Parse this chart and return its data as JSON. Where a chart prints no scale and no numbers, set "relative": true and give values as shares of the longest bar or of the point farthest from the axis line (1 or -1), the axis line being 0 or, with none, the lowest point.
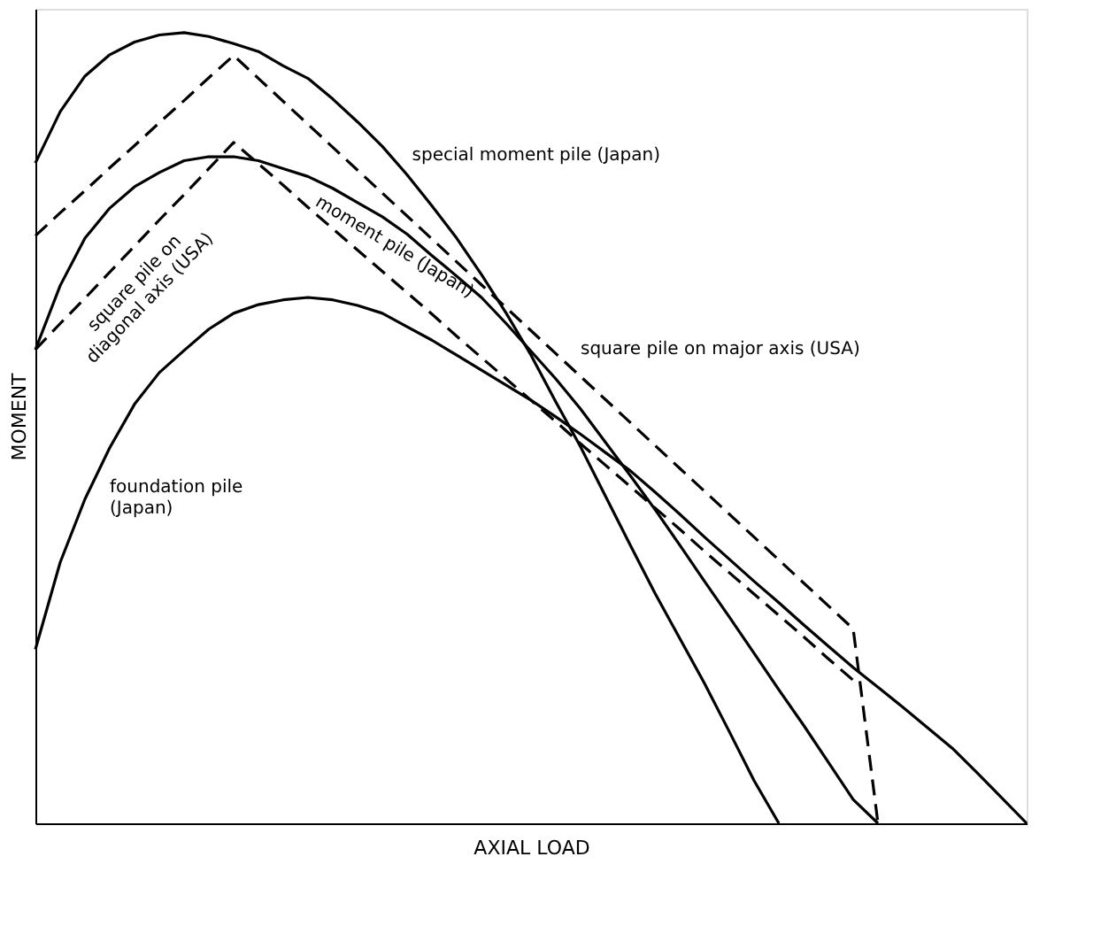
{
  "chart_data": {
    "type": "line",
    "xlabel": "AXIAL LOAD",
    "ylabel": "MOMENT",
    "relative": true,
    "tick_labels": false,
    "categories": [
      null,
      null,
      null,
      null,
      null,
      null,
      null,
      null,
      null,
      null,
      null,
      null,
      null,
      null,
      null,
      null,
      null,
      null,
      null,
      null,
      null,
      null,
      null,
      null,
      null,
      null,
      null,
      null,
      null,
      null,
      null,
      null,
      null,
      null,
      null,
      null,
      null,
      null,
      null,
      null,
      null
    ],
    "series": [
      {
        "name": "special moment pile (Japan)",
        "color": "#000000",
        "line_style": "solid",
        "values": [
          0.835,
          0.9,
          0.945,
          0.972,
          0.988,
          0.997,
          1.0,
          0.995,
          0.986,
          0.976,
          0.958,
          0.942,
          0.916,
          0.887,
          0.856,
          0.82,
          0.781,
          0.74,
          0.694,
          0.645,
          0.592,
          0.533,
          0.476,
          0.414,
          0.352,
          0.291,
          0.234,
          0.177,
          0.116,
          0.054,
          0,
          null,
          null,
          null,
          null,
          null,
          null,
          null,
          null,
          null,
          null
        ]
      },
      {
        "name": "square pile on major axis (USA)",
        "color": "#000000",
        "line_style": "dashed",
        "values": [
          0.743,
          0.772,
          0.8,
          0.829,
          0.857,
          0.886,
          0.914,
          0.943,
          0.971,
          0.942,
          0.913,
          0.884,
          0.855,
          0.826,
          0.797,
          0.768,
          0.739,
          0.71,
          0.681,
          0.652,
          0.623,
          0.594,
          0.565,
          0.536,
          0.507,
          0.478,
          0.449,
          0.42,
          0.391,
          0.362,
          0.333,
          0.304,
          0.275,
          0.246,
          0,
          null,
          null,
          null,
          null,
          null,
          null
        ]
      },
      {
        "name": "moment pile (Japan)",
        "color": "#000000",
        "line_style": "solid",
        "values": [
          0.599,
          0.68,
          0.74,
          0.778,
          0.805,
          0.823,
          0.838,
          0.843,
          0.843,
          0.838,
          0.828,
          0.818,
          0.803,
          0.785,
          0.767,
          0.745,
          0.718,
          0.692,
          0.665,
          0.632,
          0.597,
          0.562,
          0.524,
          0.482,
          0.44,
          0.397,
          0.352,
          0.306,
          0.261,
          0.215,
          0.169,
          0.124,
          0.077,
          0.03,
          0,
          null,
          null,
          null,
          null,
          null,
          null
        ]
      },
      {
        "name": "square pile on diagonal axis (USA)",
        "color": "#000000",
        "line_style": "dashed",
        "values": [
          0.599,
          0.632,
          0.664,
          0.697,
          0.73,
          0.763,
          0.795,
          0.828,
          0.861,
          0.834,
          0.807,
          0.779,
          0.752,
          0.725,
          0.698,
          0.671,
          0.644,
          0.616,
          0.589,
          0.562,
          0.535,
          0.508,
          0.48,
          0.453,
          0.426,
          0.399,
          0.372,
          0.344,
          0.317,
          0.29,
          0.263,
          0.236,
          0.208,
          0.181,
          null,
          null,
          null,
          null,
          null,
          null,
          null
        ]
      },
      {
        "name": "foundation pile (Japan)",
        "color": "#000000",
        "line_style": "solid",
        "values": [
          0.22,
          0.33,
          0.41,
          0.475,
          0.53,
          0.57,
          0.598,
          0.625,
          0.645,
          0.656,
          0.662,
          0.665,
          0.662,
          0.655,
          0.645,
          0.628,
          0.611,
          0.592,
          0.573,
          0.554,
          0.535,
          0.514,
          0.492,
          0.469,
          0.446,
          0.419,
          0.391,
          0.362,
          0.334,
          0.306,
          0.279,
          0.251,
          0.224,
          0.197,
          0.172,
          0.147,
          0.121,
          0.095,
          0.064,
          0.032,
          0
        ]
      }
    ]
  }
}
